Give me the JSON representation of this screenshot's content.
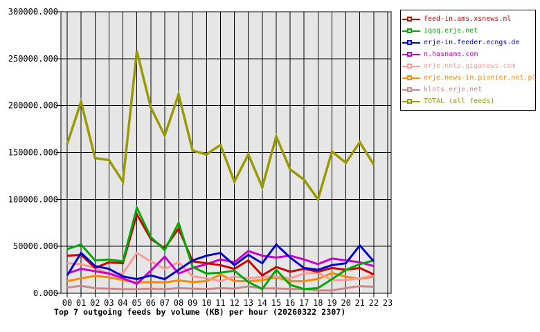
{
  "colors": {
    "page_bg": "#ffffff",
    "plot_bg": "#e6e6e6",
    "grid": "#000000",
    "axis_text": "#000000",
    "legend_border": "#000000"
  },
  "chart_data": {
    "type": "line",
    "title": "Top 7 outgoing feeds by volume (KB) per hour (20260322 2307)",
    "xlabel": "",
    "ylabel": "",
    "ylim": [
      0,
      300000
    ],
    "ytick_step": 50000,
    "ytick_labels": [
      "0.000",
      "50000.000",
      "100000.000",
      "150000.000",
      "200000.000",
      "250000.000",
      "300000.000"
    ],
    "x_labels": [
      "00",
      "01",
      "02",
      "03",
      "04",
      "05",
      "06",
      "07",
      "08",
      "09",
      "10",
      "11",
      "12",
      "13",
      "14",
      "15",
      "16",
      "17",
      "18",
      "19",
      "20",
      "21",
      "22",
      "23"
    ],
    "grid": true,
    "legend_position": "top-right-outside",
    "series": [
      {
        "name": "feed-in.ams.xsnews.nl",
        "color": "#cc0000",
        "values": [
          40000,
          41000,
          27000,
          33000,
          32000,
          84000,
          58000,
          48000,
          69000,
          34000,
          32000,
          30000,
          26000,
          35000,
          19000,
          28000,
          23000,
          26000,
          23000,
          27000,
          25000,
          27000,
          20000
        ]
      },
      {
        "name": "iqoq.erje.net",
        "color": "#00aa00",
        "values": [
          47000,
          52000,
          35000,
          36000,
          34000,
          91000,
          60000,
          46000,
          75000,
          28000,
          21000,
          22000,
          24000,
          12000,
          4500,
          25000,
          9000,
          4500,
          5500,
          15000,
          25000,
          31000,
          35000
        ]
      },
      {
        "name": "erje-in.feeder.ecngs.de",
        "color": "#0000cc",
        "values": [
          19000,
          43000,
          29000,
          26000,
          18000,
          15000,
          19000,
          15000,
          25000,
          35000,
          40000,
          43000,
          30000,
          41000,
          32000,
          52000,
          38000,
          27000,
          25000,
          30000,
          32000,
          51000,
          34000
        ]
      },
      {
        "name": "n.hasname.com",
        "color": "#cc00cc",
        "values": [
          21000,
          26000,
          23500,
          21000,
          16000,
          10000,
          24000,
          39000,
          21000,
          27000,
          31000,
          36000,
          33000,
          45000,
          40000,
          38000,
          40000,
          36000,
          31000,
          37000,
          35000,
          33000,
          29000
        ]
      },
      {
        "name": "erje.nntp.giganews.com",
        "color": "#ff9999",
        "values": [
          32000,
          31000,
          27000,
          21000,
          21000,
          43000,
          34000,
          26000,
          33000,
          18000,
          16000,
          13000,
          18000,
          16000,
          17500,
          18000,
          16000,
          21000,
          22000,
          14000,
          14000,
          16000,
          19000
        ]
      },
      {
        "name": "erje.news-in.pionier.net.pl",
        "color": "#ff8800",
        "values": [
          12800,
          16000,
          18500,
          17000,
          14000,
          11500,
          12000,
          11500,
          13600,
          12000,
          13000,
          20000,
          13000,
          12800,
          14000,
          17000,
          12800,
          12800,
          15300,
          21500,
          17700,
          15300,
          17700
        ]
      },
      {
        "name": "klots.erje.net",
        "color": "#cc8888",
        "values": [
          6000,
          8000,
          5400,
          5000,
          4400,
          4400,
          5000,
          4400,
          5500,
          5000,
          4500,
          5500,
          5000,
          7400,
          5200,
          5200,
          4500,
          4500,
          3000,
          3000,
          5500,
          7500,
          7000
        ]
      },
      {
        "name": "TOTAL (all feeds)",
        "color": "#999900",
        "values": [
          159000,
          204000,
          144000,
          142000,
          119000,
          258000,
          198000,
          168000,
          212000,
          152000,
          148000,
          158000,
          119000,
          148000,
          113000,
          167000,
          132000,
          121000,
          100000,
          151000,
          139000,
          161000,
          137000
        ]
      }
    ]
  }
}
